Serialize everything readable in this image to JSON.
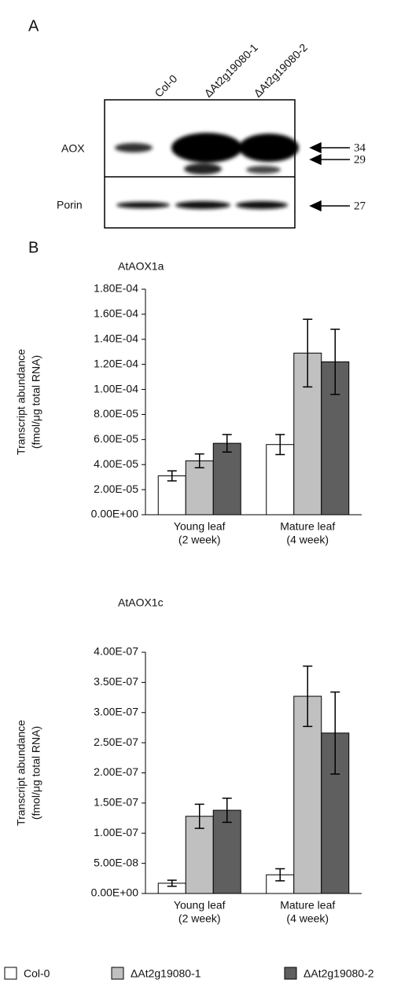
{
  "panel_a": {
    "label": "A",
    "lanes": [
      "Col-0",
      "ΔAt2g19080-1",
      "ΔAt2g19080-2"
    ],
    "rows": [
      "AOX",
      "Porin"
    ],
    "markers": [
      "34",
      "29",
      "27"
    ]
  },
  "panel_b": {
    "label": "B"
  },
  "chart_data": [
    {
      "type": "bar",
      "title": "AtAOX1a",
      "y_label": [
        "Transcript abundance",
        "(fmol/μg total RNA)"
      ],
      "categories": [
        [
          "Young leaf",
          "(2 week)"
        ],
        [
          "Mature leaf",
          "(4 week)"
        ]
      ],
      "series": [
        {
          "name": "Col-0",
          "color": "#ffffff",
          "values": [
            3.1e-05,
            5.6e-05
          ],
          "errors": [
            4e-06,
            8e-06
          ]
        },
        {
          "name": "ΔAt2g19080-1",
          "color": "#c0c0c0",
          "values": [
            4.3e-05,
            0.000129
          ],
          "errors": [
            5.5e-06,
            2.7e-05
          ]
        },
        {
          "name": "ΔAt2g19080-2",
          "color": "#5f5f5f",
          "values": [
            5.7e-05,
            0.000122
          ],
          "errors": [
            7e-06,
            2.6e-05
          ]
        }
      ],
      "ylim": [
        0,
        0.00018
      ],
      "yticks": [
        {
          "value": 0,
          "label": "0.00E+00"
        },
        {
          "value": 2e-05,
          "label": "2.00E-05"
        },
        {
          "value": 4e-05,
          "label": "4.00E-05"
        },
        {
          "value": 6e-05,
          "label": "6.00E-05"
        },
        {
          "value": 8e-05,
          "label": "8.00E-05"
        },
        {
          "value": 0.0001,
          "label": "1.00E-04"
        },
        {
          "value": 0.00012,
          "label": "1.20E-04"
        },
        {
          "value": 0.00014,
          "label": "1.40E-04"
        },
        {
          "value": 0.00016,
          "label": "1.60E-04"
        },
        {
          "value": 0.00018,
          "label": "1.80E-04"
        }
      ]
    },
    {
      "type": "bar",
      "title": "AtAOX1c",
      "y_label": [
        "Transcript abundance",
        "(fmol/μg total RNA)"
      ],
      "categories": [
        [
          "Young leaf",
          "(2 week)"
        ],
        [
          "Mature leaf",
          "(4 week)"
        ]
      ],
      "series": [
        {
          "name": "Col-0",
          "color": "#ffffff",
          "values": [
            1.7e-08,
            3.1e-08
          ],
          "errors": [
            5e-09,
            1e-08
          ]
        },
        {
          "name": "ΔAt2g19080-1",
          "color": "#c0c0c0",
          "values": [
            1.28e-07,
            3.27e-07
          ],
          "errors": [
            2e-08,
            5e-08
          ]
        },
        {
          "name": "ΔAt2g19080-2",
          "color": "#5f5f5f",
          "values": [
            1.38e-07,
            2.66e-07
          ],
          "errors": [
            2e-08,
            6.8e-08
          ]
        }
      ],
      "ylim": [
        0,
        4e-07
      ],
      "yticks": [
        {
          "value": 0,
          "label": "0.00E+00"
        },
        {
          "value": 5e-08,
          "label": "5.00E-08"
        },
        {
          "value": 1e-07,
          "label": "1.00E-07"
        },
        {
          "value": 1.5e-07,
          "label": "1.50E-07"
        },
        {
          "value": 2e-07,
          "label": "2.00E-07"
        },
        {
          "value": 2.5e-07,
          "label": "2.50E-07"
        },
        {
          "value": 3e-07,
          "label": "3.00E-07"
        },
        {
          "value": 3.5e-07,
          "label": "3.50E-07"
        },
        {
          "value": 4e-07,
          "label": "4.00E-07"
        }
      ]
    }
  ]
}
